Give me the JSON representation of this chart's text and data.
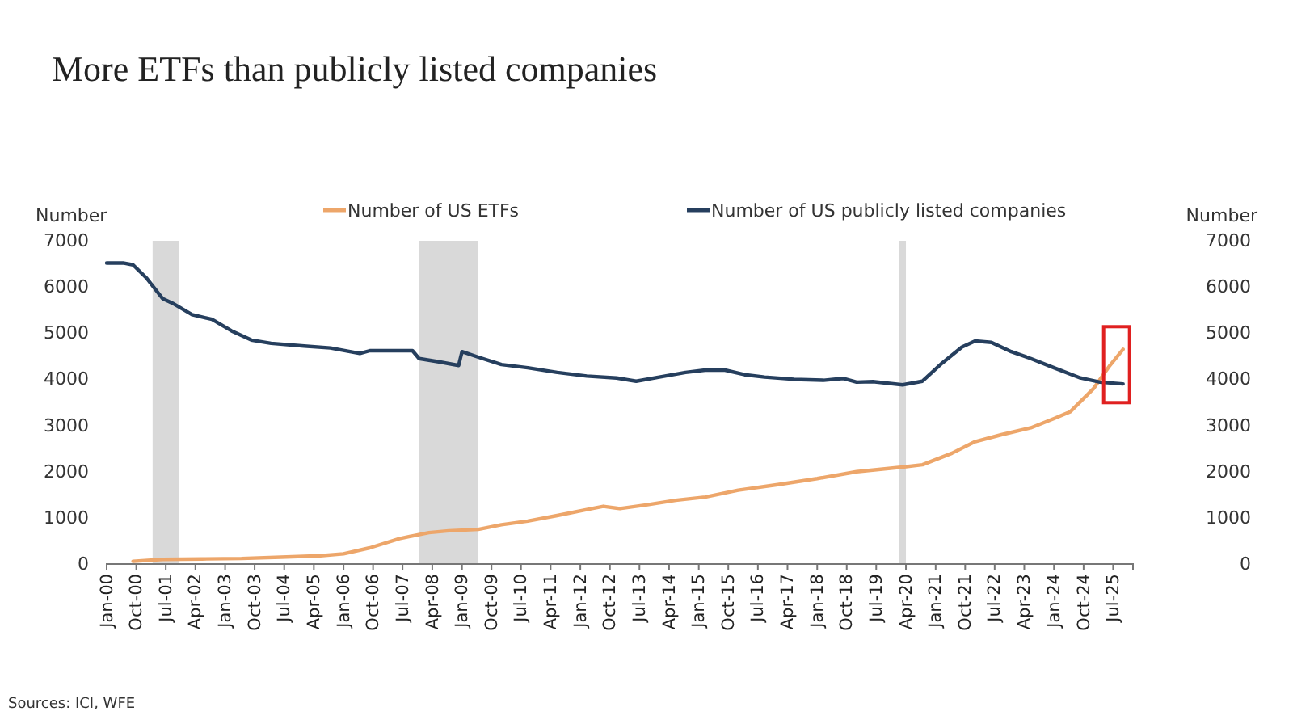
{
  "chart_data": {
    "type": "line",
    "title": "More ETFs than publicly listed companies",
    "ylabel": "Number",
    "y2label": "Number",
    "annotations": [
      "Sources: ICI, WFE"
    ],
    "xlim": [
      "2000-01",
      "2026-01"
    ],
    "xticks": [
      {
        "value": "2000-01",
        "label": "Jan-00"
      },
      {
        "value": "2000-10",
        "label": "Oct-00"
      },
      {
        "value": "2001-07",
        "label": "Jul-01"
      },
      {
        "value": "2002-04",
        "label": "Apr-02"
      },
      {
        "value": "2003-01",
        "label": "Jan-03"
      },
      {
        "value": "2003-10",
        "label": "Oct-03"
      },
      {
        "value": "2004-07",
        "label": "Jul-04"
      },
      {
        "value": "2005-04",
        "label": "Apr-05"
      },
      {
        "value": "2006-01",
        "label": "Jan-06"
      },
      {
        "value": "2006-10",
        "label": "Oct-06"
      },
      {
        "value": "2007-07",
        "label": "Jul-07"
      },
      {
        "value": "2008-04",
        "label": "Apr-08"
      },
      {
        "value": "2009-01",
        "label": "Jan-09"
      },
      {
        "value": "2009-10",
        "label": "Oct-09"
      },
      {
        "value": "2010-07",
        "label": "Jul-10"
      },
      {
        "value": "2011-04",
        "label": "Apr-11"
      },
      {
        "value": "2012-01",
        "label": "Jan-12"
      },
      {
        "value": "2012-10",
        "label": "Oct-12"
      },
      {
        "value": "2013-07",
        "label": "Jul-13"
      },
      {
        "value": "2014-04",
        "label": "Apr-14"
      },
      {
        "value": "2015-01",
        "label": "Jan-15"
      },
      {
        "value": "2015-10",
        "label": "Oct-15"
      },
      {
        "value": "2016-07",
        "label": "Jul-16"
      },
      {
        "value": "2017-04",
        "label": "Apr-17"
      },
      {
        "value": "2018-01",
        "label": "Jan-18"
      },
      {
        "value": "2018-10",
        "label": "Oct-18"
      },
      {
        "value": "2019-07",
        "label": "Jul-19"
      },
      {
        "value": "2020-04",
        "label": "Apr-20"
      },
      {
        "value": "2021-01",
        "label": "Jan-21"
      },
      {
        "value": "2021-10",
        "label": "Oct-21"
      },
      {
        "value": "2022-07",
        "label": "Jul-22"
      },
      {
        "value": "2023-04",
        "label": "Apr-23"
      },
      {
        "value": "2024-01",
        "label": "Jan-24"
      },
      {
        "value": "2024-10",
        "label": "Oct-24"
      },
      {
        "value": "2025-07",
        "label": "Jul-25"
      }
    ],
    "ylim": [
      0,
      7000
    ],
    "yticks": [
      0,
      1000,
      2000,
      3000,
      4000,
      5000,
      6000,
      7000
    ],
    "y2lim": [
      0,
      7000
    ],
    "y2ticks": [
      0,
      1000,
      2000,
      3000,
      4000,
      5000,
      6000,
      7000
    ],
    "grid": false,
    "legend": "top",
    "line_style": "solid",
    "marker": "none",
    "bands": [
      {
        "axis": "x",
        "from": "2001-03",
        "to": "2001-11",
        "color": "#d9d9d9"
      },
      {
        "axis": "x",
        "from": "2007-12",
        "to": "2009-06",
        "color": "#d9d9d9"
      },
      {
        "axis": "x",
        "from": "2020-02",
        "to": "2020-04",
        "color": "#d9d9d9"
      }
    ],
    "series": [
      {
        "name": "Number of US ETFs",
        "color": "#eda66a",
        "x": [
          "2000-09",
          "2001-06",
          "2002-06",
          "2003-06",
          "2004-06",
          "2005-06",
          "2006-01",
          "2006-09",
          "2007-06",
          "2008-03",
          "2008-09",
          "2009-06",
          "2010-01",
          "2010-09",
          "2011-06",
          "2012-03",
          "2012-08",
          "2013-01",
          "2013-09",
          "2014-06",
          "2015-03",
          "2016-01",
          "2017-01",
          "2018-01",
          "2019-01",
          "2020-03",
          "2020-09",
          "2021-06",
          "2022-01",
          "2022-09",
          "2023-06",
          "2024-01",
          "2024-06",
          "2025-01",
          "2025-06",
          "2025-10"
        ],
        "values": [
          60,
          100,
          110,
          120,
          150,
          180,
          220,
          350,
          550,
          680,
          720,
          750,
          850,
          930,
          1050,
          1180,
          1250,
          1200,
          1280,
          1380,
          1450,
          1600,
          1720,
          1850,
          2000,
          2100,
          2150,
          2400,
          2650,
          2800,
          2950,
          3150,
          3300,
          3800,
          4300,
          4650
        ]
      },
      {
        "name": "Number of US publicly listed companies",
        "color": "#263f5e",
        "x": [
          "2000-01",
          "2000-06",
          "2000-09",
          "2001-01",
          "2001-06",
          "2001-09",
          "2002-03",
          "2002-09",
          "2003-03",
          "2003-09",
          "2004-03",
          "2005-01",
          "2005-09",
          "2006-06",
          "2006-09",
          "2007-03",
          "2007-10",
          "2007-12",
          "2008-06",
          "2008-12",
          "2009-01",
          "2009-06",
          "2010-01",
          "2010-09",
          "2011-06",
          "2012-03",
          "2012-12",
          "2013-06",
          "2014-01",
          "2014-09",
          "2015-03",
          "2015-09",
          "2016-03",
          "2016-09",
          "2017-06",
          "2018-03",
          "2018-09",
          "2019-01",
          "2019-06",
          "2020-03",
          "2020-09",
          "2021-03",
          "2021-09",
          "2022-01",
          "2022-06",
          "2022-12",
          "2023-06",
          "2024-01",
          "2024-09",
          "2025-03",
          "2025-10"
        ],
        "values": [
          6520,
          6520,
          6480,
          6200,
          5750,
          5650,
          5400,
          5300,
          5050,
          4850,
          4780,
          4720,
          4680,
          4560,
          4620,
          4620,
          4620,
          4450,
          4380,
          4300,
          4600,
          4480,
          4320,
          4250,
          4150,
          4070,
          4030,
          3960,
          4050,
          4150,
          4200,
          4200,
          4100,
          4050,
          4000,
          3980,
          4020,
          3940,
          3950,
          3880,
          3960,
          4350,
          4700,
          4830,
          4800,
          4600,
          4450,
          4250,
          4030,
          3940,
          3900
        ]
      }
    ]
  }
}
